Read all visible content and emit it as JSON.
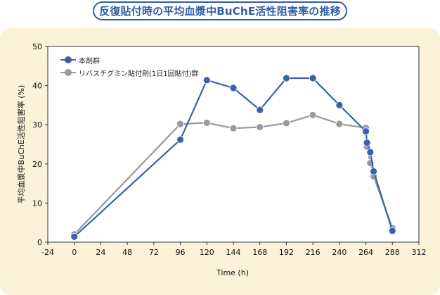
{
  "title": "反復貼付時の平均血漿中BuChE活性阻害率の推移",
  "chart_data": {
    "type": "line",
    "xlabel": "Time (h)",
    "ylabel": "平均血漿中BuChE活性阻害率 (%)",
    "xlim": [
      -24,
      312
    ],
    "ylim": [
      0,
      50
    ],
    "xticks": [
      -24,
      0,
      24,
      48,
      72,
      96,
      120,
      144,
      168,
      192,
      216,
      240,
      264,
      288,
      312
    ],
    "yticks": [
      0,
      10,
      20,
      30,
      40,
      50
    ],
    "legend_position": "top-left",
    "series": [
      {
        "name": "本剤群",
        "color": "#3a61ad",
        "points": [
          [
            0,
            1.4
          ],
          [
            96,
            26.2
          ],
          [
            120,
            41.4
          ],
          [
            144,
            39.4
          ],
          [
            168,
            33.8
          ],
          [
            192,
            41.9
          ],
          [
            216,
            41.9
          ],
          [
            240,
            35.0
          ],
          [
            264,
            28.3
          ],
          [
            265,
            25.4
          ],
          [
            268,
            23.0
          ],
          [
            271,
            18.1
          ],
          [
            288,
            2.9
          ]
        ]
      },
      {
        "name": "リバスチグミン貼付剤(1日1回貼付)群",
        "color": "#9a9a9a",
        "points": [
          [
            0,
            2.0
          ],
          [
            96,
            30.2
          ],
          [
            120,
            30.5
          ],
          [
            144,
            29.1
          ],
          [
            168,
            29.4
          ],
          [
            192,
            30.4
          ],
          [
            216,
            32.5
          ],
          [
            240,
            30.2
          ],
          [
            264,
            29.2
          ],
          [
            265,
            24.4
          ],
          [
            268,
            20.2
          ],
          [
            271,
            16.8
          ],
          [
            288,
            3.6
          ]
        ]
      }
    ]
  }
}
